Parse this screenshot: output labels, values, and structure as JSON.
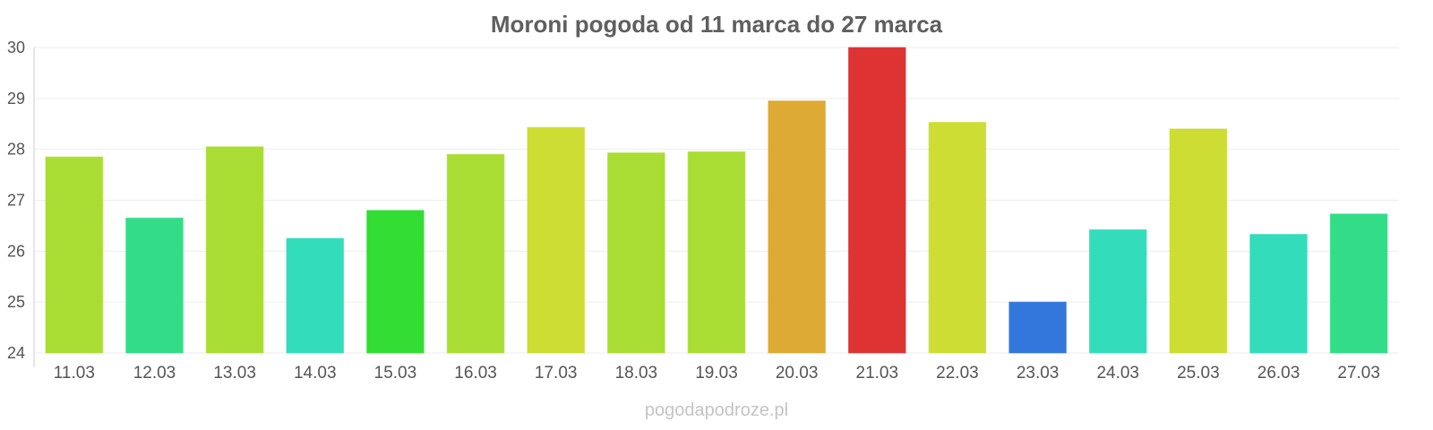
{
  "watermark": "pogodapodroze.pl",
  "chart_data": {
    "type": "bar",
    "title": "Moroni pogoda od 11 marca do 27 marca",
    "xlabel": "",
    "ylabel": "",
    "ylim": [
      24,
      30
    ],
    "yticks": [
      24,
      25,
      26,
      27,
      28,
      29,
      30
    ],
    "grid": true,
    "categories": [
      "11.03",
      "12.03",
      "13.03",
      "14.03",
      "15.03",
      "16.03",
      "17.03",
      "18.03",
      "19.03",
      "20.03",
      "21.03",
      "22.03",
      "23.03",
      "24.03",
      "25.03",
      "26.03",
      "27.03"
    ],
    "values": [
      27.85,
      26.65,
      28.05,
      26.25,
      26.8,
      27.9,
      28.43,
      27.93,
      27.95,
      28.95,
      30.0,
      28.53,
      25.0,
      26.42,
      28.4,
      26.33,
      26.73
    ],
    "colors": [
      "#aadd33",
      "#33dd88",
      "#aadd33",
      "#33ddbb",
      "#33dd33",
      "#aadd33",
      "#cddd33",
      "#aadd33",
      "#aadd33",
      "#ddaa33",
      "#dd3333",
      "#cddd33",
      "#3377dd",
      "#33ddbb",
      "#cddd33",
      "#33ddbb",
      "#33dd88"
    ]
  }
}
